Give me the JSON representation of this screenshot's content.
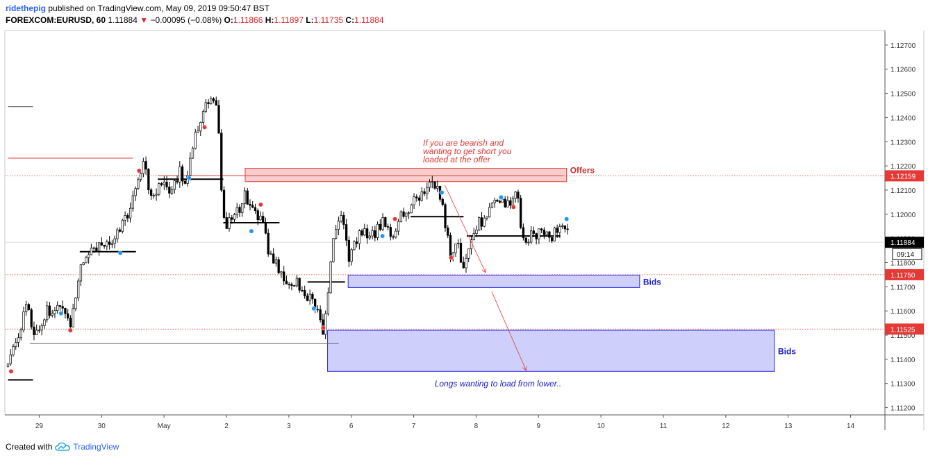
{
  "header": {
    "author": "ridethepig",
    "published": "published on TradingView.com, May 09, 2019 09:50:47 BST",
    "symbol": "FOREXCOM:EURUSD, 60",
    "last": "1.11884",
    "change_arrow": "▼",
    "change": "−0.00095 (−0.08%)",
    "open_label": "O:",
    "open": "1.11866",
    "high_label": "H:",
    "high": "1.11897",
    "low_label": "L:",
    "low": "1.11735",
    "close_label": "C:",
    "close": "1.11884"
  },
  "footer": {
    "created_with": "Created with",
    "brand": "TradingView",
    "brand_icon": "tradingview-cloud-icon"
  },
  "colors": {
    "up": "#ffffff",
    "down": "#000000",
    "wick": "#000000",
    "offer_zone": "#f5c6c6",
    "offer_border": "#e53935",
    "bid_zone": "#c5c8fa",
    "bid_border": "#2a2ae6",
    "annotation_red": "#e53935",
    "annotation_blue": "#1a1acb"
  },
  "chart_data": {
    "type": "candlestick",
    "xlabel": "",
    "ylabel": "",
    "ylim": [
      1.1117,
      1.1276
    ],
    "grid": false,
    "y_ticks": [
      "1.11200",
      "1.11300",
      "1.11400",
      "1.11500",
      "1.11600",
      "1.11700",
      "1.11800",
      "1.11900",
      "1.12000",
      "1.12100",
      "1.12200",
      "1.12300",
      "1.12400",
      "1.12500",
      "1.12600",
      "1.12700"
    ],
    "x_ticks": [
      {
        "label": "29",
        "day": 0.5
      },
      {
        "label": "30",
        "day": 1.5
      },
      {
        "label": "May",
        "day": 2.5
      },
      {
        "label": "2",
        "day": 3.5
      },
      {
        "label": "3",
        "day": 4.5
      },
      {
        "label": "6",
        "day": 5.5
      },
      {
        "label": "7",
        "day": 6.5
      },
      {
        "label": "8",
        "day": 7.5
      },
      {
        "label": "9",
        "day": 8.5
      },
      {
        "label": "10",
        "day": 9.5
      },
      {
        "label": "11",
        "day": 10.5
      },
      {
        "label": "12",
        "day": 11.5
      },
      {
        "label": "13",
        "day": 12.5
      },
      {
        "label": "14",
        "day": 13.5
      }
    ],
    "price_tags": [
      {
        "value": 1.12159,
        "text": "1.12159",
        "kind": "red"
      },
      {
        "value": 1.11884,
        "text": "1.11884",
        "kind": "current"
      },
      {
        "value": 1.1175,
        "text": "1.11750",
        "kind": "red"
      },
      {
        "value": 1.11525,
        "text": "1.11525",
        "kind": "red"
      }
    ],
    "countdown": "09:14",
    "zones": [
      {
        "name": "Offers",
        "kind": "offer",
        "day_from": 3.8,
        "day_to": 8.95,
        "low": 1.12135,
        "high": 1.1219
      },
      {
        "name": "Bids",
        "kind": "bid",
        "day_from": 5.45,
        "day_to": 10.12,
        "low": 1.11697,
        "high": 1.11748
      },
      {
        "name": "Bids",
        "kind": "bid",
        "day_from": 5.12,
        "day_to": 12.28,
        "low": 1.1135,
        "high": 1.1152
      }
    ],
    "annotations": {
      "offer_note": [
        "If you are bearish and",
        "wanting to get short you",
        "loaded at the offer"
      ],
      "bid_note": "Longs wanting to load from lower.."
    },
    "anchor_path": [
      [
        0.0,
        1.1137
      ],
      [
        0.15,
        1.1148
      ],
      [
        0.3,
        1.1162
      ],
      [
        0.45,
        1.115
      ],
      [
        0.6,
        1.1159
      ],
      [
        0.8,
        1.1162
      ],
      [
        1.0,
        1.1153
      ],
      [
        1.15,
        1.1178
      ],
      [
        1.3,
        1.1184
      ],
      [
        1.5,
        1.1186
      ],
      [
        1.7,
        1.119
      ],
      [
        1.85,
        1.1197
      ],
      [
        2.0,
        1.1205
      ],
      [
        2.1,
        1.1218
      ],
      [
        2.2,
        1.1222
      ],
      [
        2.3,
        1.1204
      ],
      [
        2.45,
        1.1214
      ],
      [
        2.6,
        1.1211
      ],
      [
        2.75,
        1.1217
      ],
      [
        2.85,
        1.1215
      ],
      [
        2.95,
        1.1226
      ],
      [
        3.05,
        1.1236
      ],
      [
        3.15,
        1.1244
      ],
      [
        3.25,
        1.1246
      ],
      [
        3.35,
        1.1245
      ],
      [
        3.45,
        1.1196
      ],
      [
        3.6,
        1.1197
      ],
      [
        3.8,
        1.1208
      ],
      [
        3.9,
        1.1204
      ],
      [
        4.0,
        1.12
      ],
      [
        4.1,
        1.1193
      ],
      [
        4.2,
        1.1183
      ],
      [
        4.35,
        1.1176
      ],
      [
        4.5,
        1.1172
      ],
      [
        4.65,
        1.1172
      ],
      [
        4.8,
        1.1166
      ],
      [
        4.95,
        1.116
      ],
      [
        5.05,
        1.1152
      ],
      [
        5.15,
        1.1175
      ],
      [
        5.25,
        1.1195
      ],
      [
        5.35,
        1.1203
      ],
      [
        5.45,
        1.1182
      ],
      [
        5.55,
        1.1188
      ],
      [
        5.7,
        1.1194
      ],
      [
        5.85,
        1.1191
      ],
      [
        6.0,
        1.1197
      ],
      [
        6.15,
        1.119
      ],
      [
        6.3,
        1.1199
      ],
      [
        6.5,
        1.1205
      ],
      [
        6.65,
        1.1209
      ],
      [
        6.8,
        1.1212
      ],
      [
        6.9,
        1.121
      ],
      [
        7.0,
        1.1197
      ],
      [
        7.1,
        1.1182
      ],
      [
        7.2,
        1.1188
      ],
      [
        7.3,
        1.1178
      ],
      [
        7.4,
        1.119
      ],
      [
        7.55,
        1.1196
      ],
      [
        7.7,
        1.1202
      ],
      [
        7.85,
        1.1207
      ],
      [
        8.0,
        1.1203
      ],
      [
        8.15,
        1.1209
      ],
      [
        8.25,
        1.1189
      ],
      [
        8.4,
        1.1191
      ],
      [
        8.55,
        1.1194
      ],
      [
        8.7,
        1.119
      ],
      [
        8.8,
        1.1195
      ],
      [
        8.92,
        1.1197
      ],
      [
        9.0,
        1.1188
      ]
    ],
    "levels": [
      {
        "from": 0.0,
        "to": 0.4,
        "value": 1.11315,
        "color": "#000000",
        "width": 2
      },
      {
        "from": 0.35,
        "to": 5.3,
        "value": 1.11465,
        "color": "#666666",
        "width": 1
      },
      {
        "from": 1.15,
        "to": 2.05,
        "value": 1.11845,
        "color": "#000000",
        "width": 2
      },
      {
        "from": 2.4,
        "to": 3.45,
        "value": 1.12145,
        "color": "#000000",
        "width": 2
      },
      {
        "from": 3.45,
        "to": 4.35,
        "value": 1.11965,
        "color": "#000000",
        "width": 2
      },
      {
        "from": 4.8,
        "to": 5.4,
        "value": 1.1172,
        "color": "#000000",
        "width": 2
      },
      {
        "from": 6.45,
        "to": 7.3,
        "value": 1.1199,
        "color": "#000000",
        "width": 2
      },
      {
        "from": 7.35,
        "to": 8.85,
        "value": 1.1191,
        "color": "#000000",
        "width": 2
      },
      {
        "from": 0.0,
        "to": 2.0,
        "value": 1.12232,
        "color": "#e53935",
        "width": 1
      },
      {
        "from": 2.4,
        "to": 8.9,
        "value": 1.12159,
        "color": "#e53935",
        "width": 1
      },
      {
        "from": 0.0,
        "to": 0.4,
        "value": 1.12445,
        "color": "#555555",
        "width": 1
      }
    ],
    "markers": [
      {
        "day": 0.05,
        "value": 1.1135,
        "kind": "red"
      },
      {
        "day": 0.85,
        "value": 1.1159,
        "kind": "blue"
      },
      {
        "day": 1.0,
        "value": 1.1152,
        "kind": "red"
      },
      {
        "day": 1.8,
        "value": 1.1184,
        "kind": "blue"
      },
      {
        "day": 2.1,
        "value": 1.1218,
        "kind": "red"
      },
      {
        "day": 2.9,
        "value": 1.1215,
        "kind": "blue"
      },
      {
        "day": 3.15,
        "value": 1.1236,
        "kind": "red"
      },
      {
        "day": 3.9,
        "value": 1.1193,
        "kind": "blue"
      },
      {
        "day": 4.05,
        "value": 1.1204,
        "kind": "red"
      },
      {
        "day": 4.9,
        "value": 1.1161,
        "kind": "blue"
      },
      {
        "day": 5.05,
        "value": 1.1153,
        "kind": "red"
      },
      {
        "day": 6.0,
        "value": 1.1191,
        "kind": "blue"
      },
      {
        "day": 6.2,
        "value": 1.1198,
        "kind": "red"
      },
      {
        "day": 6.95,
        "value": 1.1209,
        "kind": "blue"
      },
      {
        "day": 7.1,
        "value": 1.1182,
        "kind": "red"
      },
      {
        "day": 7.9,
        "value": 1.1207,
        "kind": "blue"
      },
      {
        "day": 8.1,
        "value": 1.1203,
        "kind": "red"
      },
      {
        "day": 8.95,
        "value": 1.1198,
        "kind": "blue"
      }
    ],
    "trend_arrows": [
      {
        "from": [
          7.0,
          1.1212
        ],
        "to": [
          7.65,
          1.1176
        ]
      },
      {
        "from": [
          7.75,
          1.1168
        ],
        "to": [
          8.3,
          1.11355
        ]
      }
    ]
  }
}
